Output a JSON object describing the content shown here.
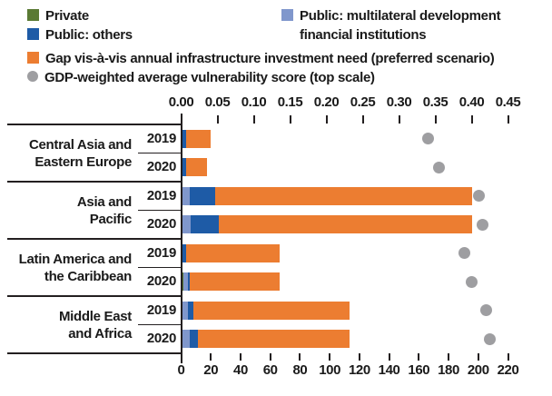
{
  "legend": {
    "private": "Private",
    "public_others": "Public: others",
    "mdfi": "Public: multilateral development financial institutions",
    "gap": "Gap vis-à-vis annual infrastructure investment need (preferred scenario)",
    "score": "GDP-weighted average vulnerability score (top scale)"
  },
  "colors": {
    "private": "#5a7a34",
    "public_others": "#1e5ba6",
    "mdfi": "#8097cc",
    "gap": "#ec7d31",
    "score": "#9e9ea1",
    "line": "#231f20",
    "text": "#1a1a1a"
  },
  "chart_data": {
    "type": "bar",
    "orientation": "horizontal",
    "stack_order": [
      "private",
      "mdfi",
      "public_others",
      "gap"
    ],
    "bottom_axis": {
      "min": 0,
      "max": 220,
      "step": 20,
      "ticks": [
        0,
        20,
        40,
        60,
        80,
        100,
        120,
        140,
        160,
        180,
        200,
        220
      ]
    },
    "top_axis": {
      "min": 0,
      "max": 0.45,
      "step": 0.05,
      "ticks": [
        "0.00",
        "0.05",
        "0.10",
        "0.15",
        "0.20",
        "0.25",
        "0.30",
        "0.35",
        "0.40",
        "0.45"
      ]
    },
    "legend_position": "top-left",
    "grid": false,
    "groups": [
      {
        "region_lines": [
          "Central Asia and",
          "Eastern Europe"
        ],
        "rows": [
          {
            "year": "2019",
            "private": 0,
            "mdfi": 0,
            "public_others": 2.5,
            "gap": 16.5,
            "total": 19,
            "score": 0.34
          },
          {
            "year": "2020",
            "private": 0,
            "mdfi": 0,
            "public_others": 2.5,
            "gap": 14.5,
            "total": 17,
            "score": 0.355
          }
        ]
      },
      {
        "region_lines": [
          "Asia and",
          "Pacific"
        ],
        "rows": [
          {
            "year": "2019",
            "private": 0,
            "mdfi": 5,
            "public_others": 17.5,
            "gap": 172.5,
            "total": 195,
            "score": 0.41
          },
          {
            "year": "2020",
            "private": 0,
            "mdfi": 6,
            "public_others": 18.5,
            "gap": 170.5,
            "total": 195,
            "score": 0.415
          }
        ]
      },
      {
        "region_lines": [
          "Latin America and",
          "the Caribbean"
        ],
        "rows": [
          {
            "year": "2019",
            "private": 0,
            "mdfi": 0,
            "public_others": 2.5,
            "gap": 63.5,
            "total": 66,
            "score": 0.39
          },
          {
            "year": "2020",
            "private": 1,
            "mdfi": 3,
            "public_others": 1.5,
            "gap": 60.5,
            "total": 66,
            "score": 0.4
          }
        ]
      },
      {
        "region_lines": [
          "Middle East",
          "and Africa"
        ],
        "rows": [
          {
            "year": "2019",
            "private": 0,
            "mdfi": 4,
            "public_others": 3.5,
            "gap": 105.5,
            "total": 113,
            "score": 0.42
          },
          {
            "year": "2020",
            "private": 0,
            "mdfi": 5,
            "public_others": 5.5,
            "gap": 102.5,
            "total": 113,
            "score": 0.425
          }
        ]
      }
    ]
  }
}
